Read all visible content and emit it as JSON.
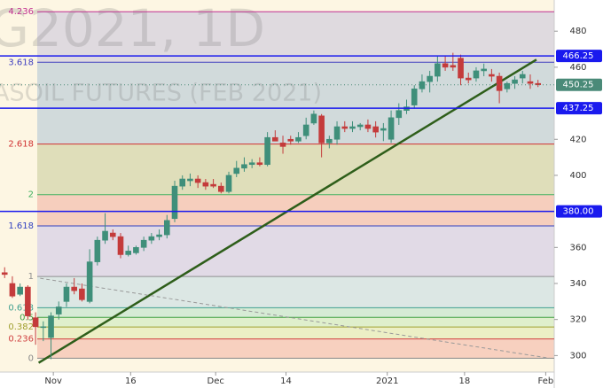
{
  "chart_data": {
    "type": "candlestick",
    "watermark": [
      "G2021, 1D",
      "ASOIL FUTURES (FEB 2021)"
    ],
    "open": [
      346,
      340,
      334,
      338,
      321,
      316,
      310,
      323,
      330,
      338,
      337,
      330,
      352,
      364,
      368,
      366,
      356,
      357,
      360,
      364,
      366,
      367,
      376,
      394,
      397,
      398,
      396,
      395,
      394,
      391,
      401,
      404,
      406,
      407,
      406,
      421,
      418,
      420,
      419,
      422,
      429,
      433,
      418,
      420,
      427,
      426,
      427,
      428,
      427,
      425,
      420,
      432,
      436,
      439,
      448,
      452,
      455,
      462,
      461,
      465,
      454,
      454,
      458,
      456,
      455,
      448,
      451,
      454,
      452,
      451
    ],
    "high": [
      349,
      344,
      340,
      339,
      324,
      319,
      324,
      330,
      340,
      343,
      340,
      359,
      366,
      379,
      370,
      368,
      361,
      361,
      366,
      368,
      370,
      378,
      397,
      400,
      401,
      400,
      398,
      398,
      396,
      402,
      408,
      410,
      409,
      410,
      424,
      425,
      422,
      422,
      424,
      432,
      436,
      434,
      422,
      430,
      430,
      430,
      429,
      431,
      430,
      429,
      436,
      440,
      442,
      450,
      456,
      458,
      466,
      466,
      468,
      467,
      457,
      460,
      462,
      459,
      457,
      452,
      455,
      458,
      456,
      453
    ],
    "low": [
      343,
      332,
      333,
      320,
      306,
      308,
      298,
      320,
      327,
      334,
      330,
      329,
      350,
      362,
      364,
      354,
      355,
      356,
      358,
      362,
      364,
      365,
      374,
      392,
      394,
      393,
      392,
      393,
      390,
      390,
      399,
      402,
      404,
      405,
      405,
      419,
      412,
      417,
      418,
      420,
      428,
      410,
      415,
      417,
      424,
      424,
      425,
      424,
      421,
      419,
      418,
      428,
      434,
      437,
      446,
      446,
      452,
      458,
      458,
      450,
      451,
      452,
      455,
      452,
      440,
      446,
      448,
      451,
      448,
      449
    ],
    "close": [
      345,
      333,
      338,
      322,
      316,
      316,
      322,
      327,
      338,
      336,
      331,
      352,
      364,
      369,
      366,
      356,
      358,
      360,
      364,
      366,
      367,
      375,
      394,
      398,
      398,
      396,
      394,
      394,
      391,
      400,
      404,
      406,
      407,
      406,
      421,
      419,
      416,
      419,
      421,
      428,
      434,
      418,
      420,
      427,
      426,
      427,
      428,
      426,
      424,
      426,
      432,
      436,
      438,
      448,
      452,
      455,
      462,
      460,
      460,
      454,
      453,
      458,
      459,
      455,
      447,
      451,
      453,
      456,
      451,
      450.25
    ],
    "up_color": "#3f8f7a",
    "down_color": "#c43b3b",
    "xlim": [
      -0.6,
      71.1
    ],
    "xticks": [
      {
        "value": 6.3,
        "label": "Nov"
      },
      {
        "value": 16.3,
        "label": "16"
      },
      {
        "value": 27.3,
        "label": "Dec"
      },
      {
        "value": 36.4,
        "label": "14"
      },
      {
        "value": 49.5,
        "label": "2021"
      },
      {
        "value": 59.5,
        "label": "18"
      },
      {
        "value": 70,
        "label": "Feb"
      }
    ],
    "ylim": [
      282,
      497.3
    ],
    "yticks": [
      480,
      460,
      420,
      400,
      360,
      340,
      320,
      300
    ],
    "fib": {
      "anchors": [
        298.5,
        343.9
      ],
      "levels": [
        0,
        0.236,
        0.382,
        0.5,
        0.618,
        1,
        1.618,
        2,
        2.618,
        3.618,
        4.236
      ],
      "line_colors": [
        "#888888",
        "#d04040",
        "#a0a030",
        "#40a040",
        "#40a090",
        "#909090",
        "#3040c0",
        "#40b060",
        "#d03030",
        "#4040c0",
        "#c03090"
      ],
      "band_colors": [
        "#f6c9b8",
        "#e9edbf",
        "#d9edc8",
        "#cfe9d2",
        "#d6e4e4",
        "#dcd5e6",
        "#f4c7b6",
        "#d9d9b3",
        "#c9d5d9",
        "#d9d5de"
      ]
    },
    "price_lines": [
      {
        "value": 466.25,
        "label": "466.25"
      },
      {
        "value": 437.25,
        "label": "437.25"
      },
      {
        "value": 380,
        "label": "380.00"
      }
    ],
    "price_line_color": "#1a1aee",
    "last_price": {
      "value": 450.25,
      "label": "450.25"
    },
    "last_price_color": "#4a8a78",
    "trend_lines": [
      {
        "x": [
          4.4,
          68.8
        ],
        "y": [
          296,
          464.2
        ],
        "color": "#2e5e1a",
        "dashed": false
      },
      {
        "x": [
          4.6,
          70.5
        ],
        "y": [
          342.9,
          298.5
        ],
        "color": "#999999",
        "dashed": true
      }
    ]
  }
}
